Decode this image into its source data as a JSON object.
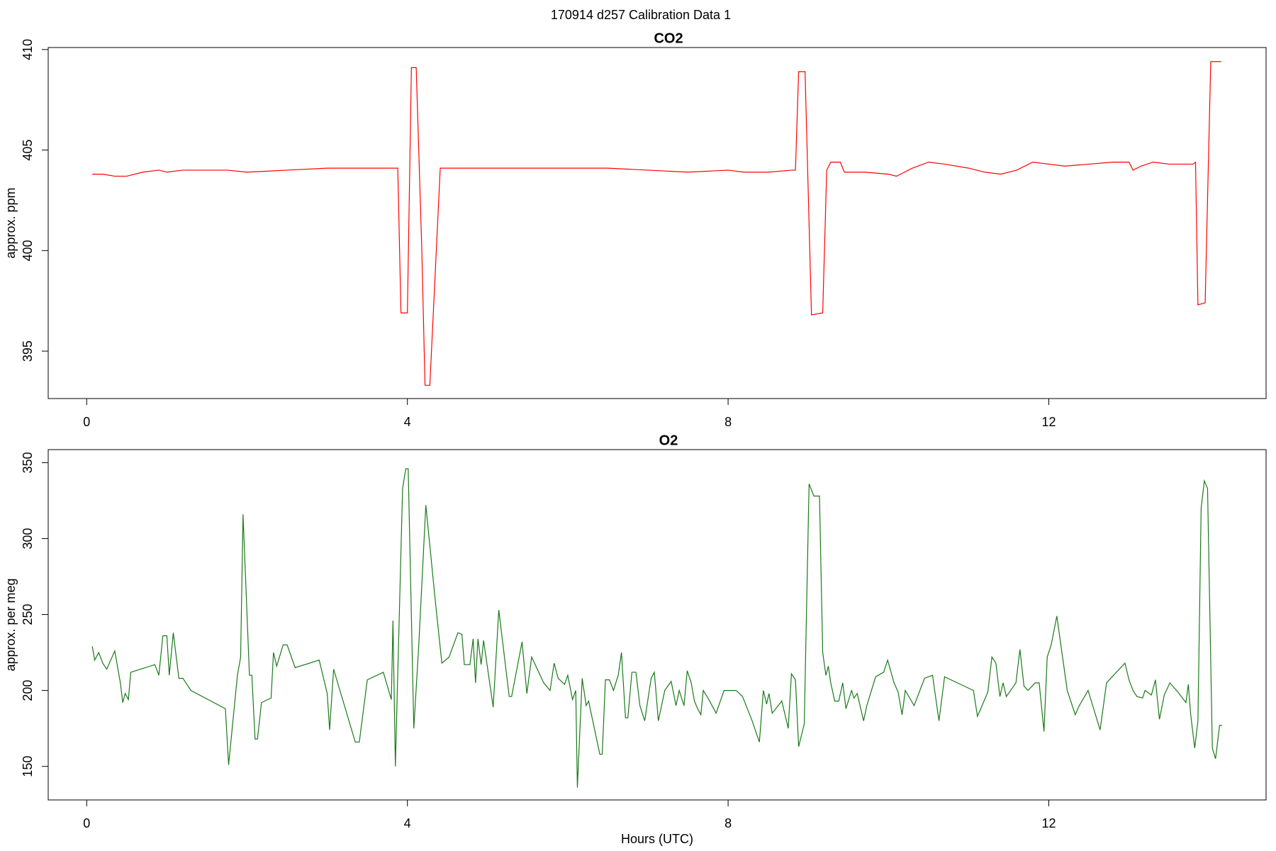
{
  "title": "170914   d257   Calibration Data 1",
  "chart_data": [
    {
      "type": "line",
      "title": "CO2",
      "y_label": "approx. ppm",
      "xlim": [
        -0.48,
        14.71
      ],
      "xticks": [
        0,
        4,
        8,
        12
      ],
      "ylim": [
        392.64,
        410.1
      ],
      "yticks": [
        395,
        400,
        405,
        410
      ],
      "x": [
        0.07,
        0.2,
        0.35,
        0.5,
        0.7,
        0.9,
        1.0,
        1.2,
        1.5,
        1.75,
        2.0,
        2.5,
        3.0,
        3.5,
        3.88,
        3.92,
        4.0,
        4.05,
        4.11,
        4.18,
        4.22,
        4.28,
        4.41,
        4.5,
        5.0,
        5.5,
        6.0,
        6.5,
        7.0,
        7.5,
        8.0,
        8.2,
        8.5,
        8.8,
        8.84,
        8.88,
        8.96,
        9.04,
        9.18,
        9.23,
        9.28,
        9.4,
        9.45,
        9.7,
        10.0,
        10.1,
        10.3,
        10.5,
        10.7,
        11.0,
        11.2,
        11.4,
        11.6,
        11.8,
        12.0,
        12.2,
        12.5,
        12.8,
        13.0,
        13.05,
        13.15,
        13.3,
        13.5,
        13.8,
        13.83,
        13.86,
        13.95,
        14.02,
        14.15
      ],
      "series": [
        {
          "name": "CO2",
          "color": "#ff0000",
          "values": [
            403.8,
            403.8,
            403.7,
            403.7,
            403.9,
            404.0,
            403.9,
            404.0,
            404.0,
            404.0,
            403.9,
            404.0,
            404.1,
            404.1,
            404.1,
            396.9,
            396.9,
            409.1,
            409.1,
            400.0,
            393.3,
            393.3,
            404.1,
            404.1,
            404.1,
            404.1,
            404.1,
            404.1,
            404.0,
            403.9,
            404.0,
            403.9,
            403.9,
            404.0,
            404.0,
            408.9,
            408.9,
            396.8,
            396.9,
            404.0,
            404.4,
            404.4,
            403.9,
            403.9,
            403.8,
            403.7,
            404.1,
            404.4,
            404.3,
            404.1,
            403.9,
            403.8,
            404.0,
            404.4,
            404.3,
            404.2,
            404.3,
            404.4,
            404.4,
            404.0,
            404.2,
            404.4,
            404.3,
            404.3,
            404.4,
            397.3,
            397.4,
            409.4,
            409.4
          ]
        }
      ]
    },
    {
      "type": "line",
      "title": "O2",
      "y_label": "approx. per meg",
      "x_label": "Hours (UTC)",
      "xlim": [
        -0.48,
        14.71
      ],
      "xticks": [
        0,
        4,
        8,
        12
      ],
      "ylim": [
        127.9,
        358.6
      ],
      "yticks": [
        150,
        200,
        250,
        300,
        350
      ],
      "x": [
        0.07,
        0.1,
        0.15,
        0.2,
        0.25,
        0.35,
        0.42,
        0.45,
        0.48,
        0.52,
        0.55,
        0.85,
        0.9,
        0.95,
        1.0,
        1.03,
        1.08,
        1.15,
        1.2,
        1.3,
        1.73,
        1.77,
        1.88,
        1.92,
        1.95,
        2.03,
        2.06,
        2.1,
        2.13,
        2.18,
        2.3,
        2.33,
        2.37,
        2.45,
        2.5,
        2.6,
        2.9,
        3.0,
        3.03,
        3.08,
        3.35,
        3.4,
        3.5,
        3.7,
        3.8,
        3.82,
        3.85,
        3.94,
        3.98,
        4.01,
        4.08,
        4.14,
        4.23,
        4.35,
        4.43,
        4.52,
        4.63,
        4.68,
        4.71,
        4.78,
        4.82,
        4.85,
        4.88,
        4.92,
        4.95,
        5.07,
        5.14,
        5.27,
        5.3,
        5.43,
        5.49,
        5.55,
        5.7,
        5.78,
        5.83,
        5.88,
        5.96,
        6.0,
        6.06,
        6.1,
        6.12,
        6.18,
        6.23,
        6.26,
        6.4,
        6.43,
        6.47,
        6.52,
        6.57,
        6.63,
        6.67,
        6.72,
        6.75,
        6.8,
        6.85,
        6.9,
        6.96,
        7.04,
        7.08,
        7.13,
        7.21,
        7.29,
        7.35,
        7.39,
        7.45,
        7.49,
        7.54,
        7.58,
        7.62,
        7.66,
        7.69,
        7.76,
        7.85,
        7.95,
        8.1,
        8.18,
        8.3,
        8.39,
        8.44,
        8.48,
        8.51,
        8.55,
        8.67,
        8.75,
        8.79,
        8.84,
        8.88,
        8.95,
        9.01,
        9.07,
        9.14,
        9.18,
        9.22,
        9.25,
        9.28,
        9.33,
        9.38,
        9.43,
        9.47,
        9.54,
        9.57,
        9.61,
        9.69,
        9.73,
        9.84,
        9.94,
        9.99,
        10.07,
        10.12,
        10.17,
        10.21,
        10.32,
        10.45,
        10.55,
        10.63,
        10.7,
        11.06,
        11.11,
        11.16,
        11.24,
        11.29,
        11.34,
        11.39,
        11.43,
        11.47,
        11.59,
        11.64,
        11.69,
        11.74,
        11.83,
        11.88,
        11.94,
        11.98,
        12.03,
        12.1,
        12.23,
        12.33,
        12.38,
        12.49,
        12.64,
        12.72,
        12.79,
        12.95,
        13.0,
        13.05,
        13.1,
        13.17,
        13.2,
        13.28,
        13.33,
        13.38,
        13.44,
        13.51,
        13.61,
        13.71,
        13.74,
        13.77,
        13.82,
        13.86,
        13.9,
        13.94,
        13.98,
        14.04,
        14.08,
        14.13,
        14.16
      ],
      "series": [
        {
          "name": "O2",
          "color": "#1a7a1a",
          "values": [
            229,
            220,
            225,
            218,
            214,
            226,
            205,
            192,
            198,
            194,
            212,
            217,
            210,
            236,
            236,
            210,
            238,
            208,
            208,
            200,
            188,
            151,
            210,
            222,
            316,
            210,
            210,
            168,
            168,
            192,
            195,
            225,
            216,
            230,
            230,
            215,
            220,
            198,
            174,
            214,
            166,
            166,
            207,
            212,
            194,
            246,
            150,
            333,
            346,
            346,
            175,
            228,
            322,
            258,
            218,
            222,
            238,
            237,
            217,
            217,
            234,
            205,
            234,
            217,
            233,
            189,
            253,
            196,
            196,
            232,
            198,
            222,
            205,
            200,
            218,
            208,
            204,
            210,
            194,
            200,
            136,
            208,
            190,
            193,
            158,
            158,
            207,
            207,
            200,
            210,
            225,
            182,
            182,
            212,
            212,
            190,
            180,
            208,
            212,
            180,
            200,
            206,
            190,
            200,
            190,
            213,
            205,
            193,
            188,
            184,
            200,
            194,
            185,
            200,
            200,
            196,
            180,
            166,
            200,
            191,
            198,
            185,
            193,
            175,
            211,
            207,
            163,
            178,
            336,
            328,
            328,
            225,
            210,
            216,
            205,
            193,
            193,
            205,
            188,
            200,
            195,
            198,
            180,
            190,
            209,
            212,
            220,
            205,
            199,
            184,
            200,
            190,
            208,
            210,
            180,
            209,
            200,
            183,
            189,
            199,
            222,
            218,
            196,
            205,
            196,
            205,
            227,
            203,
            200,
            205,
            205,
            173,
            222,
            230,
            249,
            200,
            184,
            190,
            200,
            174,
            205,
            209,
            218,
            207,
            200,
            196,
            195,
            200,
            197,
            207,
            181,
            197,
            205,
            199,
            192,
            204,
            184,
            162,
            180,
            320,
            338,
            333,
            162,
            155,
            177,
            177
          ]
        }
      ]
    }
  ]
}
